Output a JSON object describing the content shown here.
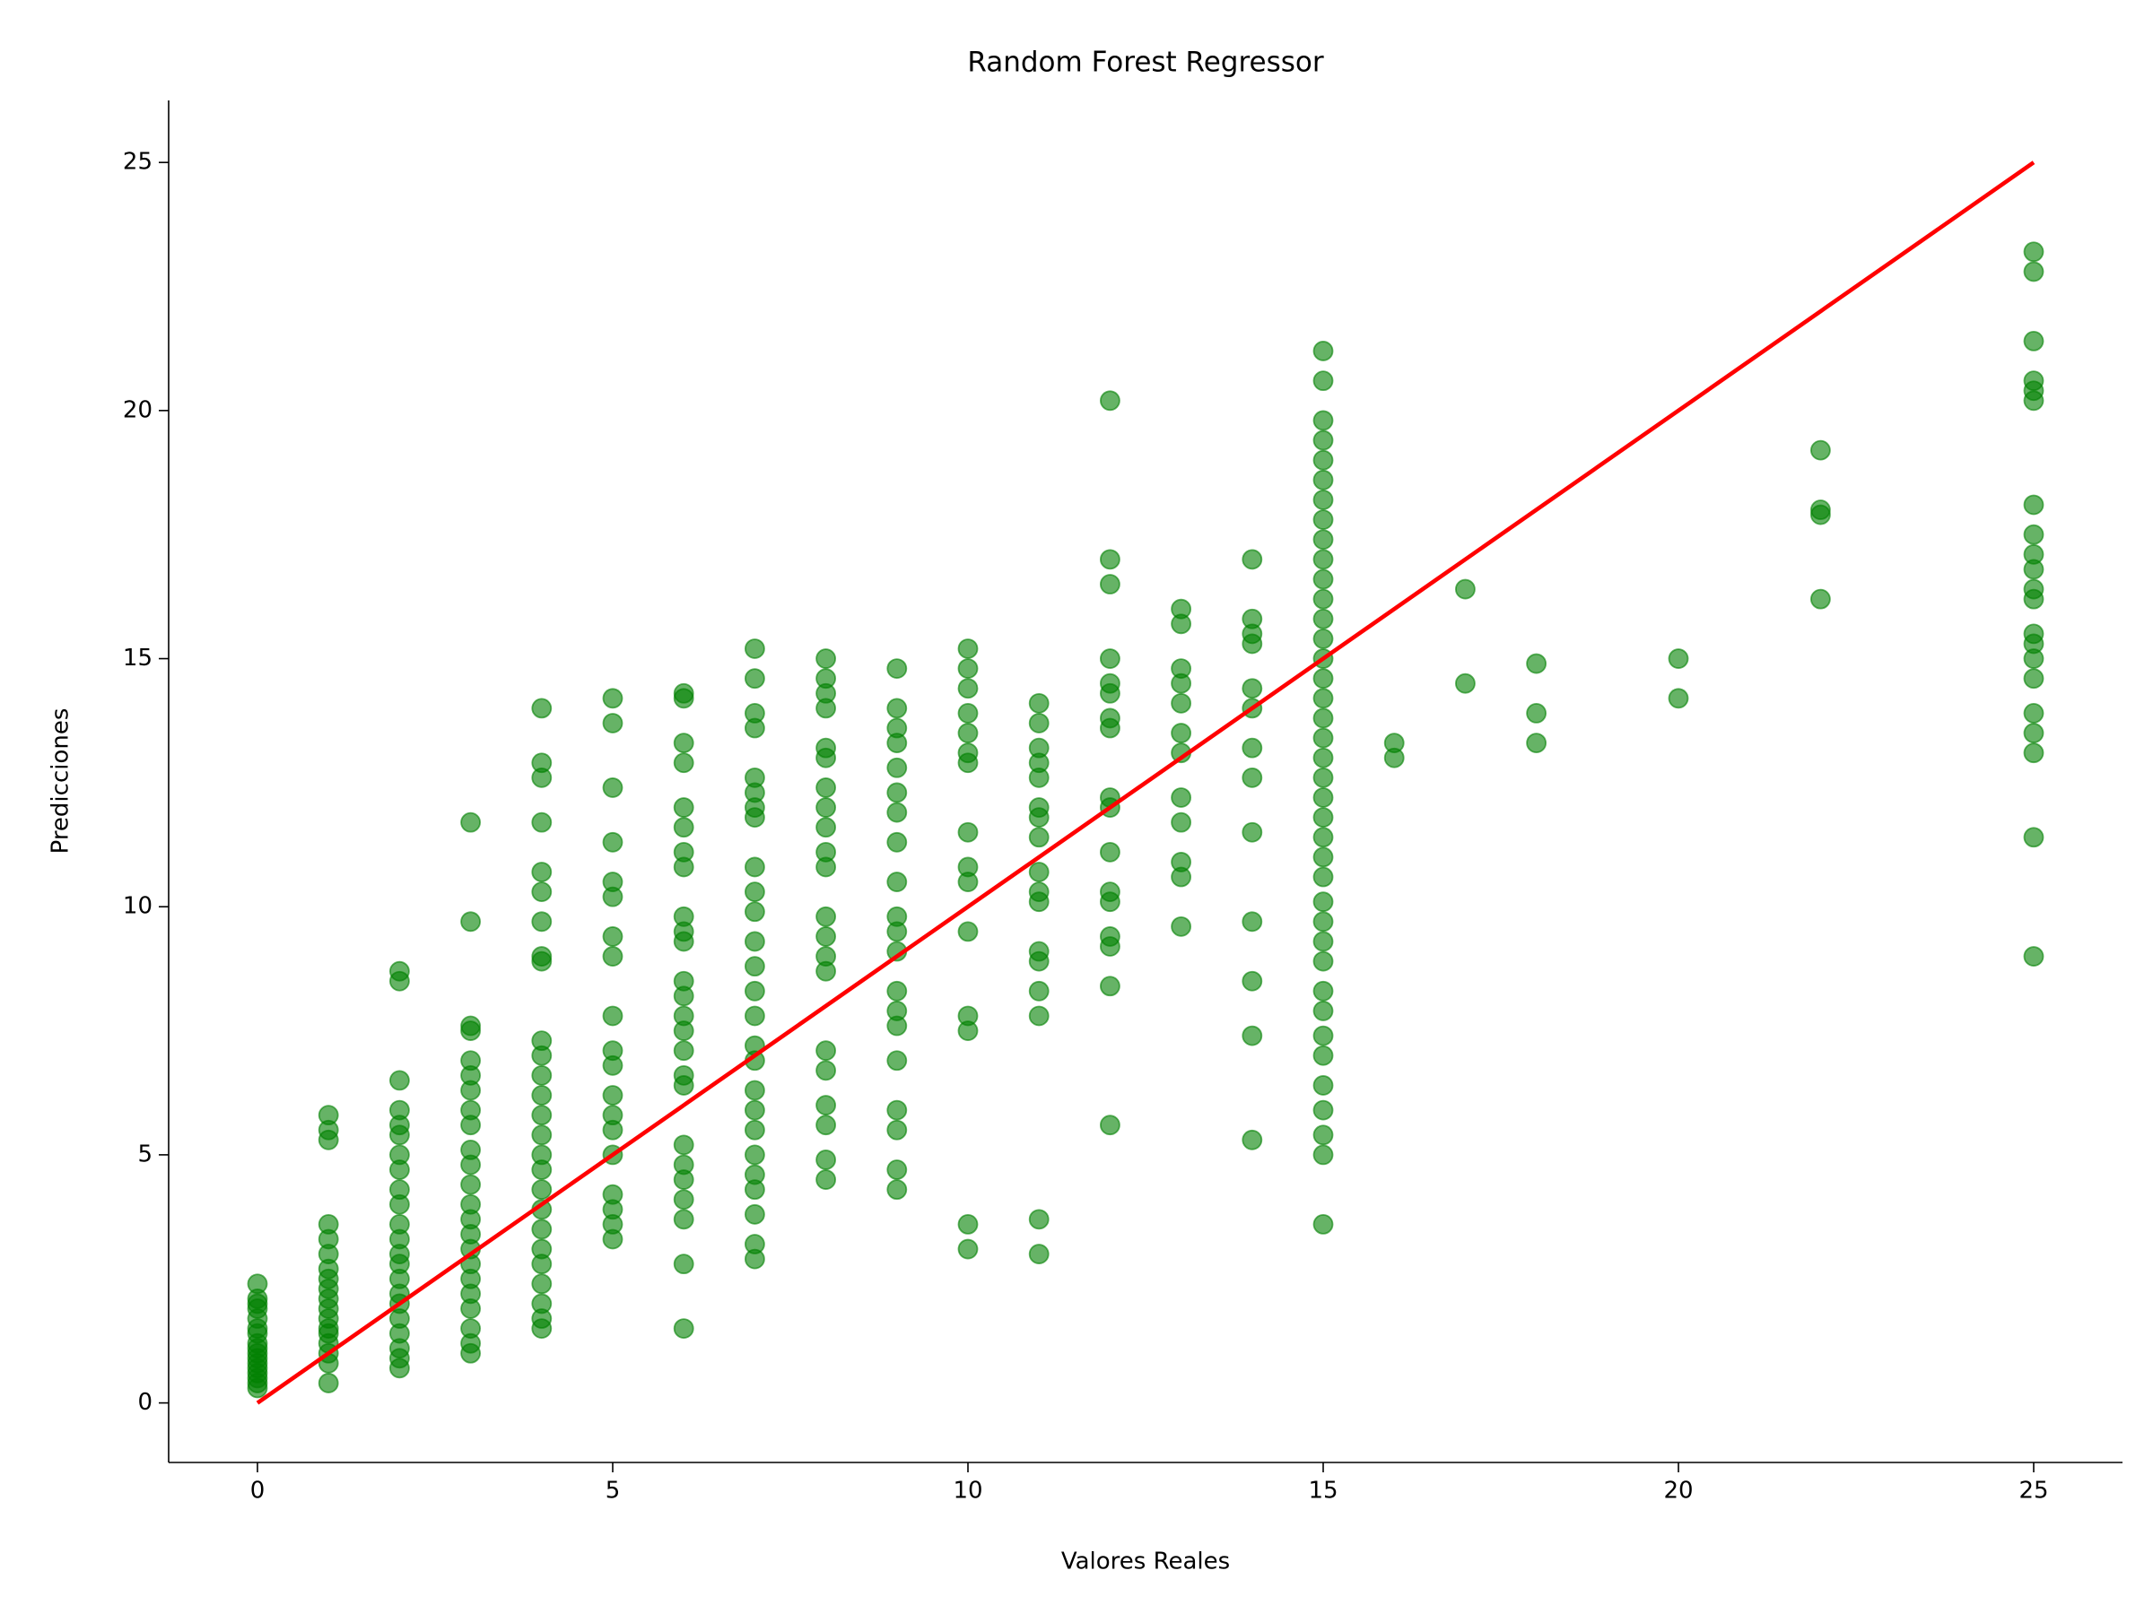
{
  "chart_data": {
    "type": "scatter",
    "title": "Random Forest Regressor",
    "x_label": "Valores Reales",
    "y_label": "Predicciones",
    "color": "green",
    "x": [
      0,
      0,
      0,
      0,
      0,
      0,
      0,
      0,
      0,
      0,
      0,
      0,
      0,
      0,
      0,
      0,
      0,
      1,
      1,
      1,
      1,
      1,
      1,
      1,
      1,
      1,
      1,
      1,
      1,
      1,
      1,
      1,
      1,
      1,
      1,
      2,
      2,
      2,
      2,
      2,
      2,
      2,
      2,
      2,
      2,
      2,
      2,
      2,
      2,
      2,
      2,
      2,
      2,
      2,
      2,
      2,
      2,
      3,
      3,
      3,
      3,
      3,
      3,
      3,
      3,
      3,
      3,
      3,
      3,
      3,
      3,
      3,
      3,
      3,
      3,
      3,
      3,
      3,
      3,
      3,
      4,
      4,
      4,
      4,
      4,
      4,
      4,
      4,
      4,
      4,
      4,
      4,
      4,
      4,
      4,
      4,
      4,
      4,
      4,
      4,
      4,
      4,
      4,
      4,
      4,
      4,
      5,
      5,
      5,
      5,
      5,
      5,
      5,
      5,
      5,
      5,
      5,
      5,
      5,
      5,
      5,
      5,
      5,
      5,
      5,
      6,
      6,
      6,
      6,
      6,
      6,
      6,
      6,
      6,
      6,
      6,
      6,
      6,
      6,
      6,
      6,
      6,
      6,
      6,
      6,
      6,
      6,
      6,
      6,
      6,
      7,
      7,
      7,
      7,
      7,
      7,
      7,
      7,
      7,
      7,
      7,
      7,
      7,
      7,
      7,
      7,
      7,
      7,
      7,
      7,
      7,
      7,
      7,
      7,
      7,
      7,
      8,
      8,
      8,
      8,
      8,
      8,
      8,
      8,
      8,
      8,
      8,
      8,
      8,
      8,
      8,
      8,
      8,
      8,
      8,
      8,
      8,
      9,
      9,
      9,
      9,
      9,
      9,
      9,
      9,
      9,
      9,
      9,
      9,
      9,
      9,
      9,
      9,
      9,
      9,
      9,
      9,
      10,
      10,
      10,
      10,
      10,
      10,
      10,
      10,
      10,
      10,
      10,
      10,
      10,
      10,
      10,
      11,
      11,
      11,
      11,
      11,
      11,
      11,
      11,
      11,
      11,
      11,
      11,
      11,
      11,
      11,
      11,
      11,
      12,
      12,
      12,
      12,
      12,
      12,
      12,
      12,
      12,
      12,
      12,
      12,
      12,
      12,
      12,
      12,
      12,
      13,
      13,
      13,
      13,
      13,
      13,
      13,
      13,
      13,
      13,
      13,
      13,
      14,
      14,
      14,
      14,
      14,
      14,
      14,
      14,
      14,
      14,
      14,
      14,
      14,
      15,
      15,
      15,
      15,
      15,
      15,
      15,
      15,
      15,
      15,
      15,
      15,
      15,
      15,
      15,
      15,
      15,
      15,
      15,
      15,
      15,
      15,
      15,
      15,
      15,
      15,
      15,
      15,
      15,
      15,
      15,
      15,
      15,
      15,
      15,
      15,
      15,
      15,
      15,
      16,
      16,
      17,
      17,
      18,
      18,
      18,
      20,
      20,
      22,
      22,
      22,
      22,
      25,
      25,
      25,
      25,
      25,
      25,
      25,
      25,
      25,
      25,
      25,
      25,
      25,
      25,
      25,
      25,
      25,
      25,
      25,
      25,
      25
    ],
    "values": [
      0.3,
      0.4,
      0.5,
      0.6,
      0.7,
      0.8,
      0.9,
      1.0,
      1.1,
      1.2,
      1.4,
      1.5,
      1.7,
      1.9,
      2.0,
      2.1,
      2.4,
      0.4,
      0.8,
      1.0,
      1.2,
      1.4,
      1.5,
      1.7,
      1.9,
      2.1,
      2.3,
      2.5,
      2.7,
      3.0,
      3.3,
      3.6,
      5.3,
      5.5,
      5.8,
      0.7,
      0.9,
      1.1,
      1.4,
      1.7,
      2.0,
      2.2,
      2.5,
      2.8,
      3.0,
      3.3,
      3.6,
      4.0,
      4.3,
      4.7,
      5.0,
      5.4,
      5.6,
      5.9,
      6.5,
      8.5,
      8.7,
      1.0,
      1.2,
      1.5,
      1.9,
      2.2,
      2.5,
      2.8,
      3.1,
      3.4,
      3.7,
      4.0,
      4.4,
      4.8,
      5.1,
      5.6,
      5.9,
      6.3,
      6.6,
      6.9,
      7.5,
      7.6,
      9.7,
      11.7,
      1.5,
      1.7,
      2.0,
      2.4,
      2.8,
      3.1,
      3.5,
      3.9,
      4.3,
      4.7,
      5.0,
      5.4,
      5.8,
      6.2,
      6.6,
      7.0,
      7.3,
      8.9,
      9.0,
      9.7,
      10.3,
      10.7,
      11.7,
      12.6,
      12.9,
      14.0,
      3.3,
      3.6,
      3.9,
      4.2,
      5.0,
      5.5,
      5.8,
      6.2,
      6.8,
      7.1,
      7.8,
      9.0,
      9.4,
      10.2,
      10.5,
      11.3,
      12.4,
      13.7,
      14.2,
      1.5,
      2.8,
      3.7,
      4.1,
      4.5,
      4.8,
      5.2,
      6.4,
      6.6,
      7.1,
      7.5,
      7.8,
      8.2,
      8.5,
      9.3,
      9.5,
      9.8,
      10.8,
      11.1,
      11.6,
      12.0,
      12.9,
      13.3,
      14.2,
      14.3,
      2.9,
      3.2,
      3.8,
      4.3,
      4.6,
      5.0,
      5.5,
      5.9,
      6.3,
      6.9,
      7.2,
      7.8,
      8.3,
      8.8,
      9.3,
      9.9,
      10.3,
      10.8,
      11.8,
      12.0,
      12.3,
      12.6,
      13.6,
      13.9,
      14.6,
      15.2,
      4.5,
      4.9,
      5.6,
      6.0,
      6.7,
      7.1,
      8.7,
      9.0,
      9.4,
      9.8,
      10.8,
      11.1,
      11.6,
      12.0,
      12.4,
      13.0,
      13.2,
      14.0,
      14.3,
      14.6,
      15.0,
      4.3,
      4.7,
      5.5,
      5.9,
      6.9,
      7.6,
      7.9,
      8.3,
      9.1,
      9.5,
      9.8,
      10.5,
      11.3,
      11.9,
      12.3,
      12.8,
      13.3,
      13.6,
      14.0,
      14.8,
      3.1,
      3.6,
      7.5,
      7.8,
      9.5,
      10.5,
      10.8,
      11.5,
      12.9,
      13.1,
      13.5,
      13.9,
      14.4,
      14.8,
      15.2,
      3.0,
      3.7,
      7.8,
      8.3,
      8.9,
      9.1,
      10.1,
      10.3,
      10.7,
      11.4,
      11.8,
      12.0,
      12.6,
      12.9,
      13.2,
      13.7,
      14.1,
      5.6,
      8.4,
      9.2,
      9.4,
      10.1,
      10.3,
      11.1,
      12.0,
      12.2,
      13.6,
      13.8,
      14.3,
      14.5,
      15.0,
      16.5,
      17.0,
      20.2,
      9.6,
      10.6,
      10.9,
      11.7,
      12.2,
      13.1,
      13.5,
      14.1,
      14.5,
      14.8,
      15.7,
      16.0,
      5.3,
      7.4,
      8.5,
      9.7,
      11.5,
      12.6,
      13.2,
      14.0,
      14.4,
      15.3,
      15.5,
      15.8,
      17.0,
      3.6,
      5.0,
      5.4,
      5.9,
      6.4,
      7.0,
      7.4,
      7.9,
      8.3,
      8.9,
      9.3,
      9.7,
      10.1,
      10.6,
      11.0,
      11.4,
      11.8,
      12.2,
      12.6,
      13.0,
      13.4,
      13.8,
      14.2,
      14.6,
      15.0,
      15.4,
      15.8,
      16.2,
      16.6,
      17.0,
      17.4,
      17.8,
      18.2,
      18.6,
      19.0,
      19.4,
      19.8,
      20.6,
      21.2,
      13.0,
      13.3,
      14.5,
      16.4,
      13.3,
      13.9,
      14.9,
      14.2,
      15.0,
      16.2,
      17.9,
      18.0,
      19.2,
      9.0,
      11.4,
      13.1,
      13.5,
      13.9,
      14.6,
      15.0,
      15.3,
      15.5,
      16.2,
      16.4,
      16.8,
      17.1,
      17.5,
      18.1,
      20.2,
      20.4,
      20.6,
      21.4,
      22.8,
      23.2
    ],
    "reference_line": {
      "x": [
        0,
        25
      ],
      "values": [
        0,
        25
      ],
      "color": "red"
    },
    "xlim": [
      -1.25,
      26.25
    ],
    "ylim": [
      -1.2,
      26.25
    ],
    "xticks": [
      0,
      5,
      10,
      15,
      20,
      25
    ],
    "yticks": [
      0,
      5,
      10,
      15,
      20,
      25
    ]
  }
}
